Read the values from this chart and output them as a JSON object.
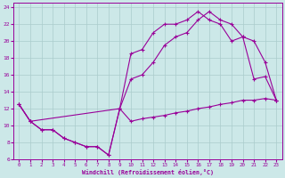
{
  "xlabel": "Windchill (Refroidissement éolien,°C)",
  "background_color": "#cce8e8",
  "grid_color": "#aacccc",
  "line_color": "#990099",
  "xlim": [
    -0.5,
    23.5
  ],
  "ylim": [
    6,
    24.5
  ],
  "xticks": [
    0,
    1,
    2,
    3,
    4,
    5,
    6,
    7,
    8,
    9,
    10,
    11,
    12,
    13,
    14,
    15,
    16,
    17,
    18,
    19,
    20,
    21,
    22,
    23
  ],
  "yticks": [
    6,
    8,
    10,
    12,
    14,
    16,
    18,
    20,
    22,
    24
  ],
  "line1_x": [
    0,
    1,
    2,
    3,
    4,
    5,
    6,
    7,
    8,
    9,
    10,
    11,
    12,
    13,
    14,
    15,
    16,
    17,
    18,
    19,
    20,
    21,
    22,
    23
  ],
  "line1_y": [
    12.5,
    10.5,
    9.5,
    9.5,
    8.5,
    8.0,
    7.5,
    7.5,
    6.5,
    12.0,
    10.5,
    10.8,
    11.0,
    11.2,
    11.5,
    11.7,
    12.0,
    12.2,
    12.5,
    12.7,
    13.0,
    13.0,
    13.2,
    13.0
  ],
  "line2_x": [
    0,
    1,
    2,
    3,
    4,
    5,
    6,
    7,
    8,
    9,
    10,
    11,
    12,
    13,
    14,
    15,
    16,
    17,
    18,
    19,
    20,
    21,
    22,
    23
  ],
  "line2_y": [
    12.5,
    10.5,
    9.5,
    9.5,
    8.5,
    8.0,
    7.5,
    7.5,
    6.5,
    12.0,
    18.5,
    19.0,
    21.0,
    22.0,
    22.0,
    22.5,
    23.5,
    22.5,
    22.0,
    20.0,
    20.5,
    15.5,
    15.8,
    13.0
  ],
  "line3_x": [
    0,
    1,
    9,
    10,
    11,
    12,
    13,
    14,
    15,
    16,
    17,
    18,
    19,
    20,
    21,
    22,
    23
  ],
  "line3_y": [
    12.5,
    10.5,
    12.0,
    15.5,
    16.0,
    17.5,
    19.5,
    20.5,
    21.0,
    22.5,
    23.5,
    22.5,
    22.0,
    20.5,
    20.0,
    17.5,
    13.0
  ]
}
